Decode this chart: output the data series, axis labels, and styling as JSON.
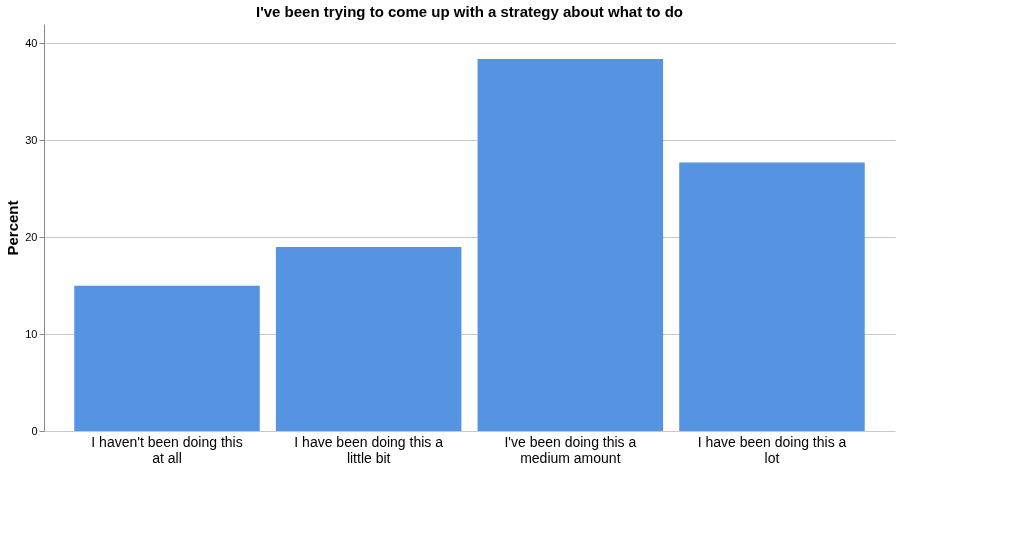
{
  "chart_data": {
    "type": "bar",
    "title": "I've been trying to come up with a strategy about what to do",
    "ylabel": "Percent",
    "categories": [
      "I haven't been doing this at all",
      "I have been doing this a little bit",
      "I've been doing this a medium amount",
      "I have been doing this a lot"
    ],
    "values": [
      15.0,
      19.0,
      38.4,
      27.7
    ],
    "color": "#5694e2",
    "ylim": [
      0,
      42
    ],
    "yticks": [
      0,
      10,
      20,
      30,
      40
    ],
    "grid": "y"
  }
}
